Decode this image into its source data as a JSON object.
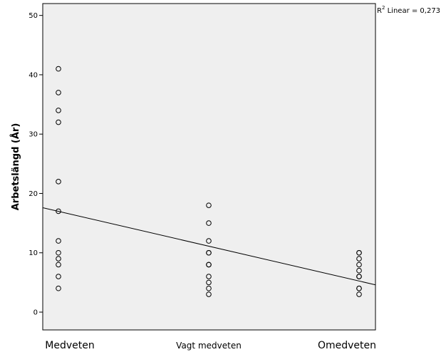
{
  "chart_data": {
    "type": "scatter",
    "ylabel": "Arbetslängd (År)",
    "xlabel": "",
    "categories": [
      "Medveten",
      "Vagt medveten",
      "Omedveten"
    ],
    "ylim": [
      -3,
      52
    ],
    "yticks": [
      0,
      10,
      20,
      30,
      40,
      50
    ],
    "grid": false,
    "background": "#efefef",
    "point_color": "#000000",
    "points": [
      {
        "x": "Medveten",
        "y": 41
      },
      {
        "x": "Medveten",
        "y": 37
      },
      {
        "x": "Medveten",
        "y": 34
      },
      {
        "x": "Medveten",
        "y": 32
      },
      {
        "x": "Medveten",
        "y": 22
      },
      {
        "x": "Medveten",
        "y": 17
      },
      {
        "x": "Medveten",
        "y": 12
      },
      {
        "x": "Medveten",
        "y": 10
      },
      {
        "x": "Medveten",
        "y": 9
      },
      {
        "x": "Medveten",
        "y": 8
      },
      {
        "x": "Medveten",
        "y": 6
      },
      {
        "x": "Medveten",
        "y": 4
      },
      {
        "x": "Vagt medveten",
        "y": 18
      },
      {
        "x": "Vagt medveten",
        "y": 15
      },
      {
        "x": "Vagt medveten",
        "y": 12
      },
      {
        "x": "Vagt medveten",
        "y": 10
      },
      {
        "x": "Vagt medveten",
        "y": 10
      },
      {
        "x": "Vagt medveten",
        "y": 8
      },
      {
        "x": "Vagt medveten",
        "y": 8
      },
      {
        "x": "Vagt medveten",
        "y": 6
      },
      {
        "x": "Vagt medveten",
        "y": 5
      },
      {
        "x": "Vagt medveten",
        "y": 4
      },
      {
        "x": "Vagt medveten",
        "y": 3
      },
      {
        "x": "Omedveten",
        "y": 10
      },
      {
        "x": "Omedveten",
        "y": 10
      },
      {
        "x": "Omedveten",
        "y": 9
      },
      {
        "x": "Omedveten",
        "y": 8
      },
      {
        "x": "Omedveten",
        "y": 7
      },
      {
        "x": "Omedveten",
        "y": 6
      },
      {
        "x": "Omedveten",
        "y": 6
      },
      {
        "x": "Omedveten",
        "y": 4
      },
      {
        "x": "Omedveten",
        "y": 4
      },
      {
        "x": "Omedveten",
        "y": 3
      }
    ],
    "fit_line": {
      "type": "linear",
      "y_left_edge": 17.6,
      "y_right_edge": 4.6
    },
    "annotation": {
      "prefix": "R",
      "superscript": "2",
      "text": " Linear = 0,273"
    }
  }
}
